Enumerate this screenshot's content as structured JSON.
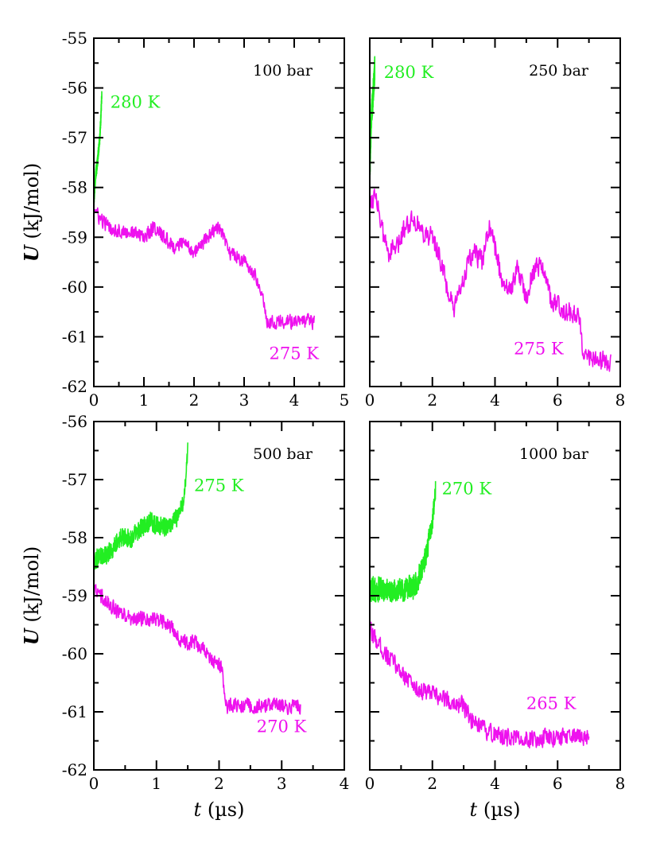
{
  "colors": {
    "green": "#22ee22",
    "magenta": "#ee11ee",
    "axis": "#000000"
  },
  "labels": {
    "ylabel_sym": "U",
    "ylabel_unit": " (kJ/mol)",
    "xlabel_sym": "t",
    "xlabel_unit": " (µs)"
  },
  "chart_data": [
    {
      "id": "p100",
      "type": "line",
      "title": "100 bar",
      "xlim": [
        0,
        5
      ],
      "xticks": [
        0,
        1,
        2,
        3,
        4,
        5
      ],
      "ylim": [
        -62,
        -55
      ],
      "yticks": [
        -62,
        -61,
        -60,
        -59,
        -58,
        -57,
        -56,
        -55
      ],
      "show_yticklabels": true,
      "show_xticklabels": true,
      "show_ylabel": true,
      "show_xlabel": false,
      "series": [
        {
          "name": "280 K",
          "color": "green",
          "label_at": [
            0.33,
            -56.4
          ],
          "x": [
            0.0,
            0.02,
            0.04,
            0.06,
            0.08,
            0.1,
            0.12,
            0.14,
            0.16
          ],
          "y": [
            -58.3,
            -58.0,
            -57.7,
            -57.6,
            -57.4,
            -57.2,
            -57.0,
            -56.6,
            -56.1
          ],
          "noise": 0.22
        },
        {
          "name": "275 K",
          "color": "magenta",
          "label_at": [
            3.5,
            -61.45
          ],
          "x": [
            0.0,
            0.1,
            0.3,
            0.6,
            0.8,
            1.0,
            1.2,
            1.4,
            1.6,
            1.8,
            2.0,
            2.2,
            2.35,
            2.5,
            2.7,
            2.9,
            3.1,
            3.3,
            3.4,
            3.45,
            3.5,
            3.8,
            4.1,
            4.4
          ],
          "y": [
            -58.4,
            -58.6,
            -58.8,
            -58.9,
            -58.9,
            -59.0,
            -58.8,
            -59.0,
            -59.2,
            -59.1,
            -59.3,
            -59.1,
            -58.9,
            -58.8,
            -59.3,
            -59.4,
            -59.6,
            -59.9,
            -60.3,
            -60.7,
            -60.7,
            -60.7,
            -60.7,
            -60.7
          ],
          "noise": 0.28
        }
      ]
    },
    {
      "id": "p250",
      "type": "line",
      "title": "250 bar",
      "xlim": [
        0,
        8
      ],
      "xticks": [
        0,
        2,
        4,
        6,
        8
      ],
      "ylim": [
        -62,
        -55
      ],
      "yticks": [
        -62,
        -61,
        -60,
        -59,
        -58,
        -57,
        -56,
        -55
      ],
      "show_yticklabels": false,
      "show_xticklabels": true,
      "show_ylabel": false,
      "show_xlabel": false,
      "series": [
        {
          "name": "280 K",
          "color": "green",
          "label_at": [
            0.45,
            -55.8
          ],
          "x": [
            0.0,
            0.03,
            0.06,
            0.1,
            0.13,
            0.16
          ],
          "y": [
            -57.8,
            -57.0,
            -56.5,
            -56.2,
            -55.9,
            -55.6
          ],
          "noise": 0.5
        },
        {
          "name": "275 K",
          "color": "magenta",
          "label_at": [
            4.6,
            -61.35
          ],
          "x": [
            0.0,
            0.2,
            0.4,
            0.6,
            0.9,
            1.1,
            1.4,
            1.7,
            2.0,
            2.2,
            2.5,
            2.7,
            3.0,
            3.3,
            3.6,
            3.8,
            4.0,
            4.2,
            4.5,
            4.7,
            5.0,
            5.2,
            5.5,
            5.8,
            6.1,
            6.4,
            6.7,
            6.8,
            7.0,
            7.4,
            7.7
          ],
          "y": [
            -58.3,
            -58.1,
            -58.9,
            -59.3,
            -59.2,
            -58.8,
            -58.6,
            -58.9,
            -59.0,
            -59.3,
            -60.1,
            -60.5,
            -59.8,
            -59.3,
            -59.5,
            -58.8,
            -59.2,
            -59.8,
            -60.1,
            -59.6,
            -60.2,
            -59.7,
            -59.5,
            -60.3,
            -60.4,
            -60.5,
            -60.6,
            -61.2,
            -61.4,
            -61.5,
            -61.5
          ],
          "noise": 0.4
        }
      ]
    },
    {
      "id": "p500",
      "type": "line",
      "title": "500 bar",
      "xlim": [
        0,
        4
      ],
      "xticks": [
        0,
        1,
        2,
        3,
        4
      ],
      "ylim": [
        -62,
        -56
      ],
      "yticks": [
        -62,
        -61,
        -60,
        -59,
        -58,
        -57,
        -56
      ],
      "show_yticklabels": true,
      "show_xticklabels": true,
      "show_ylabel": true,
      "show_xlabel": true,
      "series": [
        {
          "name": "275 K",
          "color": "green",
          "label_at": [
            1.6,
            -57.2
          ],
          "x": [
            0.0,
            0.1,
            0.2,
            0.3,
            0.4,
            0.5,
            0.6,
            0.7,
            0.8,
            0.9,
            1.0,
            1.1,
            1.2,
            1.3,
            1.4,
            1.45,
            1.48,
            1.5
          ],
          "y": [
            -58.4,
            -58.3,
            -58.3,
            -58.2,
            -58.0,
            -58.0,
            -58.0,
            -57.9,
            -57.8,
            -57.7,
            -57.8,
            -57.8,
            -57.8,
            -57.7,
            -57.5,
            -57.2,
            -56.8,
            -56.5
          ],
          "noise": 0.32
        },
        {
          "name": "270 K",
          "color": "magenta",
          "label_at": [
            2.6,
            -61.35
          ],
          "x": [
            0.0,
            0.2,
            0.4,
            0.6,
            0.8,
            1.0,
            1.2,
            1.4,
            1.6,
            1.8,
            2.0,
            2.05,
            2.1,
            2.2,
            2.5,
            2.8,
            3.0,
            3.3
          ],
          "y": [
            -58.9,
            -59.1,
            -59.3,
            -59.4,
            -59.4,
            -59.4,
            -59.5,
            -59.8,
            -59.8,
            -60.0,
            -60.2,
            -60.3,
            -60.9,
            -60.9,
            -60.9,
            -60.9,
            -60.9,
            -60.9
          ],
          "noise": 0.26
        }
      ]
    },
    {
      "id": "p1000",
      "type": "line",
      "title": "1000 bar",
      "xlim": [
        0,
        8
      ],
      "xticks": [
        0,
        2,
        4,
        6,
        8
      ],
      "ylim": [
        -62,
        -56
      ],
      "yticks": [
        -62,
        -61,
        -60,
        -59,
        -58,
        -57,
        -56
      ],
      "show_yticklabels": false,
      "show_xticklabels": true,
      "show_ylabel": false,
      "show_xlabel": true,
      "series": [
        {
          "name": "270 K",
          "color": "green",
          "label_at": [
            2.3,
            -57.25
          ],
          "x": [
            0.0,
            0.3,
            0.6,
            0.9,
            1.2,
            1.5,
            1.8,
            1.95,
            2.05,
            2.1
          ],
          "y": [
            -58.9,
            -58.9,
            -58.9,
            -58.9,
            -58.9,
            -58.8,
            -58.3,
            -57.9,
            -57.5,
            -57.1
          ],
          "noise": 0.4
        },
        {
          "name": "265 K",
          "color": "magenta",
          "label_at": [
            5.0,
            -60.95
          ],
          "x": [
            0.0,
            0.5,
            1.0,
            1.5,
            2.0,
            2.5,
            3.0,
            3.3,
            3.6,
            4.0,
            4.5,
            5.0,
            5.5,
            6.0,
            6.5,
            7.0
          ],
          "y": [
            -59.6,
            -60.0,
            -60.3,
            -60.6,
            -60.7,
            -60.8,
            -60.9,
            -61.2,
            -61.3,
            -61.4,
            -61.45,
            -61.45,
            -61.45,
            -61.45,
            -61.45,
            -61.45
          ],
          "noise": 0.3
        }
      ]
    }
  ]
}
